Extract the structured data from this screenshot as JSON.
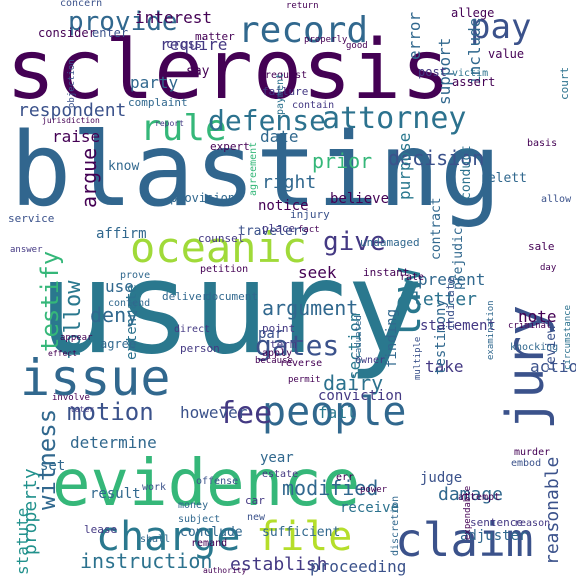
{
  "words": [
    {
      "text": "usury",
      "color": "#2a788e"
    },
    {
      "text": "blasting",
      "color": "#31668e"
    },
    {
      "text": "sclerosis",
      "color": "#440154"
    },
    {
      "text": "evidence",
      "color": "#35b779"
    },
    {
      "text": "oceanic",
      "color": "#a0da39"
    },
    {
      "text": "issue",
      "color": "#31688e"
    },
    {
      "text": "charge",
      "color": "#2a788e"
    },
    {
      "text": "claim",
      "color": "#3b528b"
    },
    {
      "text": "record",
      "color": "#31688e"
    },
    {
      "text": "people",
      "color": "#31688e"
    },
    {
      "text": "file",
      "color": "#b5de2b"
    },
    {
      "text": "jury",
      "color": "#3b528b"
    },
    {
      "text": "rule",
      "color": "#35b779"
    },
    {
      "text": "law",
      "color": "#2a788e"
    },
    {
      "text": "attorney",
      "color": "#2c728e"
    },
    {
      "text": "defense",
      "color": "#2c728e"
    },
    {
      "text": "pay",
      "color": "#3b528b"
    },
    {
      "text": "provide",
      "color": "#31688e"
    },
    {
      "text": "fee",
      "color": "#443983"
    },
    {
      "text": "motion",
      "color": "#3b528b"
    },
    {
      "text": "witness",
      "color": "#31688e"
    },
    {
      "text": "testify",
      "color": "#35b779"
    },
    {
      "text": "follow",
      "color": "#2a788e"
    },
    {
      "text": "gates",
      "color": "#3b528b"
    },
    {
      "text": "give",
      "color": "#443983"
    },
    {
      "text": "instruction",
      "color": "#2c728e"
    },
    {
      "text": "establish",
      "color": "#443983"
    },
    {
      "text": "modified",
      "color": "#31688e"
    },
    {
      "text": "damage",
      "color": "#31688e"
    },
    {
      "text": "proceeding",
      "color": "#3b528b"
    },
    {
      "text": "property",
      "color": "#21918c"
    },
    {
      "text": "statute",
      "color": "#21918c"
    },
    {
      "text": "argument",
      "color": "#31688e"
    },
    {
      "text": "decision",
      "color": "#3b528b"
    },
    {
      "text": "reasonable",
      "color": "#3b528b"
    },
    {
      "text": "letter",
      "color": "#2c728e"
    },
    {
      "text": "section",
      "color": "#2a788e"
    },
    {
      "text": "dairy",
      "color": "#2c728e"
    },
    {
      "text": "deny",
      "color": "#31688e"
    },
    {
      "text": "argue",
      "color": "#440154"
    },
    {
      "text": "right",
      "color": "#31688e"
    },
    {
      "text": "prior",
      "color": "#35b779"
    },
    {
      "text": "respondent",
      "color": "#3b528b"
    },
    {
      "text": "interest",
      "color": "#440154"
    },
    {
      "text": "require",
      "color": "#443983"
    },
    {
      "text": "party",
      "color": "#31688e"
    },
    {
      "text": "raise",
      "color": "#440154"
    },
    {
      "text": "date",
      "color": "#31688e"
    },
    {
      "text": "support",
      "color": "#31688e"
    },
    {
      "text": "include",
      "color": "#31688e"
    },
    {
      "text": "error",
      "color": "#31688e"
    },
    {
      "text": "present",
      "color": "#31688e"
    },
    {
      "text": "note",
      "color": "#440154"
    },
    {
      "text": "fail",
      "color": "#2a788e"
    },
    {
      "text": "take",
      "color": "#443983"
    },
    {
      "text": "action",
      "color": "#3b528b"
    },
    {
      "text": "purpose",
      "color": "#2a788e"
    },
    {
      "text": "determine",
      "color": "#31688e"
    },
    {
      "text": "however",
      "color": "#3b528b"
    },
    {
      "text": "conviction",
      "color": "#443983"
    },
    {
      "text": "judge",
      "color": "#3b528b"
    },
    {
      "text": "result",
      "color": "#31688e"
    },
    {
      "text": "use",
      "color": "#31688e"
    },
    {
      "text": "seek",
      "color": "#440154"
    },
    {
      "text": "believe",
      "color": "#440154"
    },
    {
      "text": "notice",
      "color": "#440154"
    },
    {
      "text": "testimony",
      "color": "#31688e"
    },
    {
      "text": "finding",
      "color": "#31688e"
    },
    {
      "text": "statement",
      "color": "#443983"
    },
    {
      "text": "extenuate",
      "color": "#2c728e"
    },
    {
      "text": "set",
      "color": "#31688e"
    },
    {
      "text": "year",
      "color": "#31688e"
    },
    {
      "text": "adjuster",
      "color": "#31688e"
    },
    {
      "text": "receive",
      "color": "#2c728e"
    },
    {
      "text": "conclude",
      "color": "#31688e"
    },
    {
      "text": "sufficient",
      "color": "#31688e"
    },
    {
      "text": "review",
      "color": "#3b528b"
    },
    {
      "text": "affirm",
      "color": "#31688e"
    },
    {
      "text": "contract",
      "color": "#31688e"
    },
    {
      "text": "prejudice",
      "color": "#31688e"
    },
    {
      "text": "travelers",
      "color": "#3b528b"
    },
    {
      "text": "know",
      "color": "#31688e"
    },
    {
      "text": "conduct",
      "color": "#2c728e"
    },
    {
      "text": "relett",
      "color": "#31688e"
    },
    {
      "text": "complaint",
      "color": "#31688e"
    },
    {
      "text": "say",
      "color": "#440154"
    },
    {
      "text": "concern",
      "color": "#3b528b"
    },
    {
      "text": "consider",
      "color": "#440154"
    },
    {
      "text": "enter",
      "color": "#3b528b"
    },
    {
      "text": "cross",
      "color": "#443983"
    },
    {
      "text": "matter",
      "color": "#440154"
    },
    {
      "text": "value",
      "color": "#440154"
    },
    {
      "text": "allege",
      "color": "#440154"
    },
    {
      "text": "post",
      "color": "#443983"
    },
    {
      "text": "assert",
      "color": "#440154"
    },
    {
      "text": "victim",
      "color": "#2c728e"
    },
    {
      "text": "expert",
      "color": "#440154"
    },
    {
      "text": "provision",
      "color": "#31688e"
    },
    {
      "text": "injury",
      "color": "#3b528b"
    },
    {
      "text": "place",
      "color": "#443983"
    },
    {
      "text": "counsel",
      "color": "#443983"
    },
    {
      "text": "petition",
      "color": "#440154"
    },
    {
      "text": "undamaged",
      "color": "#31688e"
    },
    {
      "text": "sale",
      "color": "#440154"
    },
    {
      "text": "rate",
      "color": "#440154"
    },
    {
      "text": "document",
      "color": "#31688e"
    },
    {
      "text": "deliver",
      "color": "#31688e"
    },
    {
      "text": "contend",
      "color": "#31688e"
    },
    {
      "text": "prove",
      "color": "#31688e"
    },
    {
      "text": "direct",
      "color": "#443983"
    },
    {
      "text": "agree",
      "color": "#31688e"
    },
    {
      "text": "person",
      "color": "#443983"
    },
    {
      "text": "point",
      "color": "#443983"
    },
    {
      "text": "term",
      "color": "#443983"
    },
    {
      "text": "apply",
      "color": "#440154"
    },
    {
      "text": "par",
      "color": "#3b528b"
    },
    {
      "text": "work",
      "color": "#3b528b"
    },
    {
      "text": "offense",
      "color": "#3b528b"
    },
    {
      "text": "money",
      "color": "#31688e"
    },
    {
      "text": "car",
      "color": "#443983"
    },
    {
      "text": "new",
      "color": "#3b528b"
    },
    {
      "text": "subject",
      "color": "#31688e"
    },
    {
      "text": "lease",
      "color": "#443983"
    },
    {
      "text": "discretion",
      "color": "#31688e"
    },
    {
      "text": "sentence",
      "color": "#443983"
    },
    {
      "text": "reason",
      "color": "#443983"
    },
    {
      "text": "murder",
      "color": "#440154"
    },
    {
      "text": "embod",
      "color": "#3b528b"
    },
    {
      "text": "attempt",
      "color": "#440154"
    },
    {
      "text": "expendable",
      "color": "#440154"
    },
    {
      "text": "owner",
      "color": "#443983"
    },
    {
      "text": "knocking",
      "color": "#31688e"
    },
    {
      "text": "criminal",
      "color": "#440154"
    },
    {
      "text": "instant",
      "color": "#440154"
    },
    {
      "text": "graduated",
      "color": "#31688e"
    },
    {
      "text": "examination",
      "color": "#31688e"
    },
    {
      "text": "multiple",
      "color": "#3b528b"
    },
    {
      "text": "indicate",
      "color": "#3b528b"
    },
    {
      "text": "circumstance",
      "color": "#2c728e"
    },
    {
      "text": "request",
      "color": "#440154"
    },
    {
      "text": "failure",
      "color": "#443983"
    },
    {
      "text": "payment",
      "color": "#2c728e"
    },
    {
      "text": "return",
      "color": "#440154"
    },
    {
      "text": "court",
      "color": "#2c728e"
    },
    {
      "text": "good",
      "color": "#440154"
    },
    {
      "text": "properly",
      "color": "#440154"
    },
    {
      "text": "objection",
      "color": "#3b528b"
    },
    {
      "text": "jurisdiction",
      "color": "#440154"
    },
    {
      "text": "agreement",
      "color": "#35b779"
    },
    {
      "text": "allow",
      "color": "#3b528b"
    },
    {
      "text": "basis",
      "color": "#440154"
    },
    {
      "text": "contain",
      "color": "#443983"
    },
    {
      "text": "service",
      "color": "#3b528b"
    },
    {
      "text": "answer",
      "color": "#443983"
    },
    {
      "text": "appear",
      "color": "#440154"
    },
    {
      "text": "involve",
      "color": "#440154"
    },
    {
      "text": "power",
      "color": "#440154"
    },
    {
      "text": "shall",
      "color": "#31688e"
    },
    {
      "text": "authority",
      "color": "#440154"
    },
    {
      "text": "remand",
      "color": "#440154"
    },
    {
      "text": "permit",
      "color": "#440154"
    },
    {
      "text": "err",
      "color": "#440154"
    },
    {
      "text": "estate",
      "color": "#443983"
    },
    {
      "text": "reverse",
      "color": "#440154"
    },
    {
      "text": "because",
      "color": "#440154"
    },
    {
      "text": "day",
      "color": "#440154"
    },
    {
      "text": "fact",
      "color": "#440154"
    },
    {
      "text": "report",
      "color": "#443983"
    },
    {
      "text": "later",
      "color": "#443983"
    },
    {
      "text": "effect",
      "color": "#440154"
    }
  ]
}
